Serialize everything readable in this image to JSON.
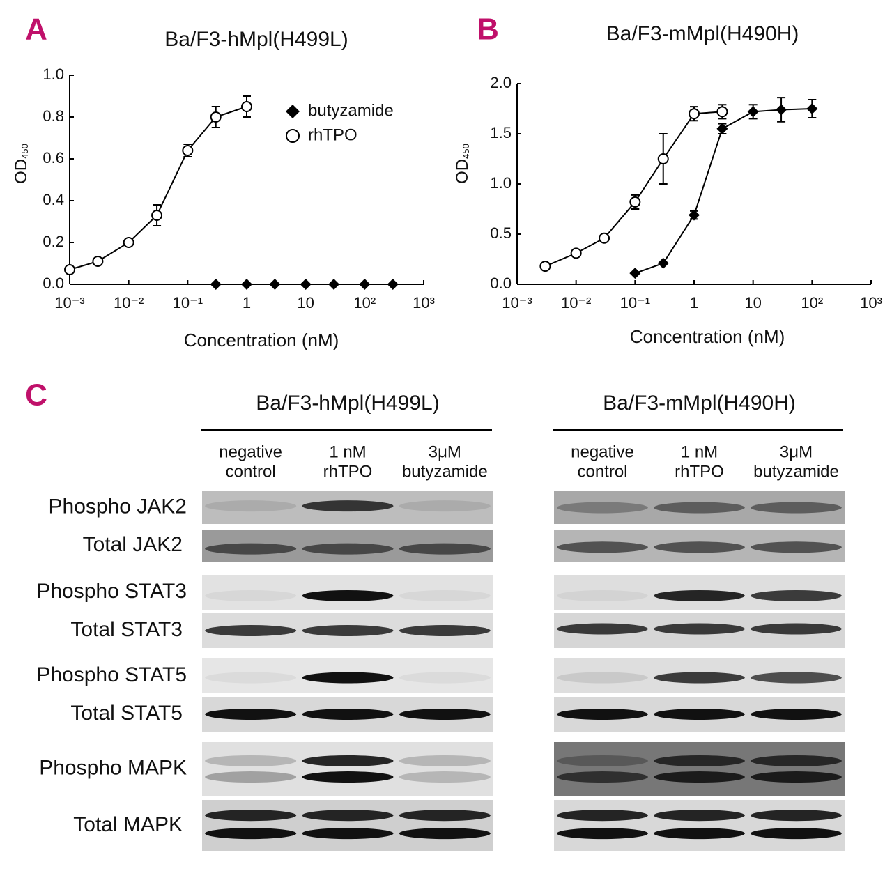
{
  "chart_data": [
    {
      "type": "line",
      "panel": "A",
      "title": "Ba/F3-hMpl(H499L)",
      "xlabel": "Concentration (nM)",
      "ylabel": "OD",
      "ylabel_sub": "450",
      "xscale": "log",
      "xlim": [
        0.001,
        1000
      ],
      "xticks": [
        {
          "value": 0.001,
          "label": "10⁻³"
        },
        {
          "value": 0.01,
          "label": "10⁻²"
        },
        {
          "value": 0.1,
          "label": "10⁻¹"
        },
        1,
        10,
        {
          "value": 100,
          "label": "10²"
        },
        {
          "value": 1000,
          "label": "10³"
        }
      ],
      "ylim": [
        0,
        1.0
      ],
      "yticks": [
        {
          "value": 0,
          "label": "0.0"
        },
        0.2,
        0.4,
        0.6,
        0.8,
        {
          "value": 1.0,
          "label": "1.0"
        }
      ],
      "legend": "upper right",
      "series": [
        {
          "name": "butyzamide",
          "marker": "diamond",
          "color": "#000000",
          "x": [
            0.3,
            1,
            3,
            10,
            30,
            100,
            300
          ],
          "values": [
            0,
            0,
            0,
            0,
            0,
            0,
            0
          ],
          "errors": [
            0,
            0,
            0,
            0,
            0,
            0,
            0
          ]
        },
        {
          "name": "rhTPO",
          "marker": "circle",
          "color": "#000000",
          "x": [
            0.001,
            0.003,
            0.01,
            0.03,
            0.1,
            0.3,
            1
          ],
          "values": [
            0.07,
            0.11,
            0.2,
            0.33,
            0.64,
            0.8,
            0.85
          ],
          "errors": [
            0,
            0,
            0,
            0.05,
            0.03,
            0.05,
            0.05
          ]
        }
      ]
    },
    {
      "type": "line",
      "panel": "B",
      "title": "Ba/F3-mMpl(H490H)",
      "xlabel": "Concentration (nM)",
      "ylabel": "OD",
      "ylabel_sub": "450",
      "xscale": "log",
      "xlim": [
        0.001,
        1000
      ],
      "xticks": [
        {
          "value": 0.001,
          "label": "10⁻³"
        },
        {
          "value": 0.01,
          "label": "10⁻²"
        },
        {
          "value": 0.1,
          "label": "10⁻¹"
        },
        1,
        10,
        {
          "value": 100,
          "label": "10²"
        },
        {
          "value": 1000,
          "label": "10³"
        }
      ],
      "ylim": [
        0,
        2.0
      ],
      "yticks": [
        {
          "value": 0,
          "label": "0.0"
        },
        0.5,
        {
          "value": 1.0,
          "label": "1.0"
        },
        1.5,
        {
          "value": 2.0,
          "label": "2.0"
        }
      ],
      "legend": false,
      "series": [
        {
          "marker": "circle",
          "color": "#000000",
          "x": [
            0.003,
            0.01,
            0.03,
            0.1,
            0.3,
            1,
            3
          ],
          "values": [
            0.18,
            0.31,
            0.46,
            0.82,
            1.25,
            1.7,
            1.72
          ],
          "errors": [
            0,
            0,
            0,
            0.07,
            0.25,
            0.07,
            0.07
          ]
        },
        {
          "marker": "diamond",
          "color": "#000000",
          "x": [
            0.1,
            0.3,
            1,
            3,
            10,
            30,
            100
          ],
          "values": [
            0.11,
            0.21,
            0.69,
            1.55,
            1.72,
            1.74,
            1.75
          ],
          "errors": [
            0,
            0,
            0.04,
            0.05,
            0.07,
            0.12,
            0.09
          ]
        }
      ]
    }
  ],
  "blots": {
    "panel": "C",
    "rows": [
      "Phospho JAK2",
      "Total JAK2",
      "Phospho STAT3",
      "Total STAT3",
      "Phospho STAT5",
      "Total STAT5",
      "Phospho MAPK",
      "Total MAPK"
    ],
    "groups": [
      {
        "title": "Ba/F3-hMpl(H499L)",
        "lanes": [
          [
            "negative",
            "control"
          ],
          [
            "1 nM",
            "rhTPO"
          ],
          [
            "3μM",
            "butyzamide"
          ]
        ]
      },
      {
        "title": "Ba/F3-mMpl(H490H)",
        "lanes": [
          [
            "negative",
            "control"
          ],
          [
            "1 nM",
            "rhTPO"
          ],
          [
            "3μM",
            "butyzamide"
          ]
        ]
      }
    ]
  }
}
